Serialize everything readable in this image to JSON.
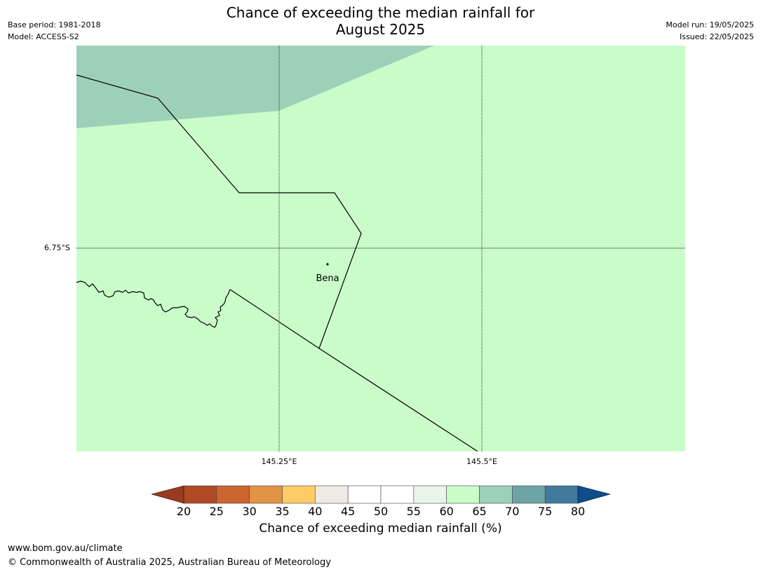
{
  "title": {
    "line1": "Chance of exceeding the median rainfall for",
    "line2": "August 2025"
  },
  "meta_left": {
    "base_period": "Base period: 1981-2018",
    "model": "Model: ACCESS-S2"
  },
  "meta_right": {
    "model_run": "Model run: 19/05/2025",
    "issued": "Issued: 22/05/2025"
  },
  "map": {
    "place_label": "Bena",
    "lat_label": "6.75°S",
    "lon_labels": [
      "145.25°E",
      "145.5°E"
    ],
    "colors": {
      "band_60_65": "#cafcca",
      "band_65_70": "#9dd0b8",
      "boundary": "#000000"
    }
  },
  "colorbar": {
    "label": "Chance of exceeding median rainfall (%)",
    "ticks": [
      "20",
      "25",
      "30",
      "35",
      "40",
      "45",
      "50",
      "55",
      "60",
      "65",
      "70",
      "75",
      "80"
    ],
    "under_color": "#9a3a22",
    "over_color": "#0f4c8c",
    "colors": [
      "#b04a25",
      "#cc6530",
      "#e39346",
      "#ffcc66",
      "#eeeae6",
      "#ffffff",
      "#ffffff",
      "#eaf5ea",
      "#cafcca",
      "#9dd0b8",
      "#6da4a6",
      "#3f7a9c"
    ]
  },
  "footer": {
    "url": "www.bom.gov.au/climate",
    "copyright": "© Commonwealth of Australia 2025, Australian Bureau of Meteorology"
  }
}
